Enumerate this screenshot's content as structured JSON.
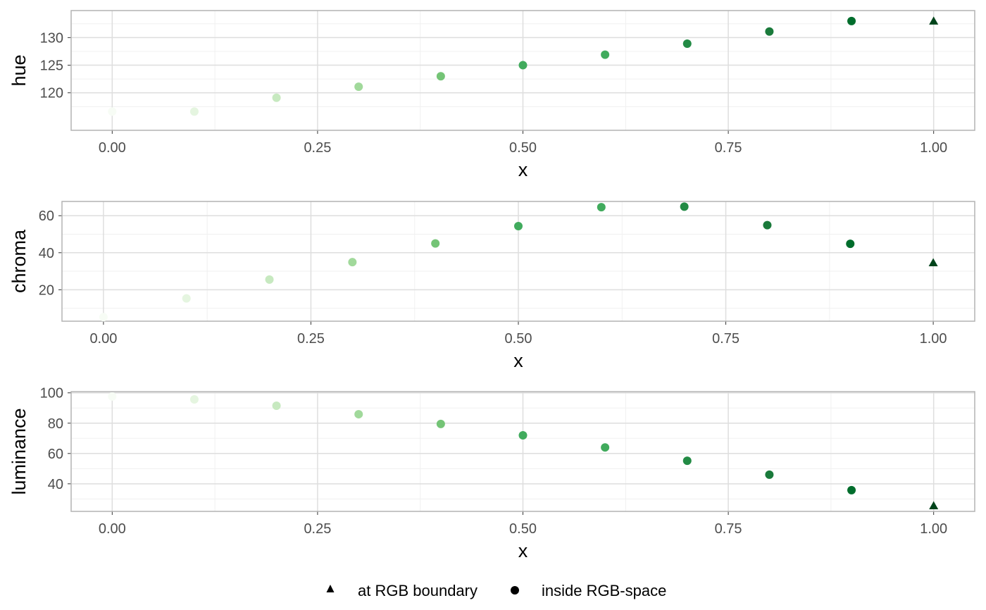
{
  "chart_data": [
    {
      "type": "scatter",
      "ylabel": "hue",
      "xlabel": "x",
      "xlim": [
        -0.05,
        1.05
      ],
      "ylim": [
        113.2,
        134.9
      ],
      "x_ticks": [
        0,
        0.25,
        0.5,
        0.75,
        1
      ],
      "x_tick_labels": [
        "0.00",
        "0.25",
        "0.50",
        "0.75",
        "1.00"
      ],
      "y_ticks": [
        120,
        125,
        130
      ],
      "y_tick_labels": [
        "120",
        "125",
        "130"
      ],
      "grid": true,
      "points": [
        {
          "x": 0.0,
          "y": 116.6,
          "shape": "circle"
        },
        {
          "x": 0.1,
          "y": 116.6,
          "shape": "circle"
        },
        {
          "x": 0.2,
          "y": 119.1,
          "shape": "circle"
        },
        {
          "x": 0.3,
          "y": 121.1,
          "shape": "circle"
        },
        {
          "x": 0.4,
          "y": 123.0,
          "shape": "circle"
        },
        {
          "x": 0.5,
          "y": 125.0,
          "shape": "circle"
        },
        {
          "x": 0.6,
          "y": 126.9,
          "shape": "circle"
        },
        {
          "x": 0.7,
          "y": 128.9,
          "shape": "circle"
        },
        {
          "x": 0.8,
          "y": 131.1,
          "shape": "circle"
        },
        {
          "x": 0.9,
          "y": 133.0,
          "shape": "circle"
        },
        {
          "x": 1.0,
          "y": 133.0,
          "shape": "triangle"
        }
      ]
    },
    {
      "type": "scatter",
      "ylabel": "chroma",
      "xlabel": "x",
      "xlim": [
        -0.05,
        1.05
      ],
      "ylim": [
        3.0,
        67.7
      ],
      "x_ticks": [
        0,
        0.25,
        0.5,
        0.75,
        1
      ],
      "x_tick_labels": [
        "0.00",
        "0.25",
        "0.50",
        "0.75",
        "1.00"
      ],
      "y_ticks": [
        20,
        40,
        60
      ],
      "y_tick_labels": [
        "20",
        "40",
        "60"
      ],
      "grid": true,
      "points": [
        {
          "x": 0.0,
          "y": 5.2,
          "shape": "circle"
        },
        {
          "x": 0.1,
          "y": 15.3,
          "shape": "circle"
        },
        {
          "x": 0.2,
          "y": 25.5,
          "shape": "circle"
        },
        {
          "x": 0.3,
          "y": 34.9,
          "shape": "circle"
        },
        {
          "x": 0.4,
          "y": 45.0,
          "shape": "circle"
        },
        {
          "x": 0.5,
          "y": 54.4,
          "shape": "circle"
        },
        {
          "x": 0.6,
          "y": 64.6,
          "shape": "circle"
        },
        {
          "x": 0.7,
          "y": 64.9,
          "shape": "circle"
        },
        {
          "x": 0.8,
          "y": 54.9,
          "shape": "circle"
        },
        {
          "x": 0.9,
          "y": 44.8,
          "shape": "circle"
        },
        {
          "x": 1.0,
          "y": 34.6,
          "shape": "triangle"
        }
      ]
    },
    {
      "type": "scatter",
      "ylabel": "luminance",
      "xlabel": "x",
      "xlim": [
        -0.05,
        1.05
      ],
      "ylim": [
        21.8,
        100.8
      ],
      "x_ticks": [
        0,
        0.25,
        0.5,
        0.75,
        1
      ],
      "x_tick_labels": [
        "0.00",
        "0.25",
        "0.50",
        "0.75",
        "1.00"
      ],
      "y_ticks": [
        40,
        60,
        80,
        100
      ],
      "y_tick_labels": [
        "40",
        "60",
        "80",
        "100"
      ],
      "grid": true,
      "points": [
        {
          "x": 0.0,
          "y": 97.6,
          "shape": "circle"
        },
        {
          "x": 0.1,
          "y": 95.7,
          "shape": "circle"
        },
        {
          "x": 0.2,
          "y": 91.5,
          "shape": "circle"
        },
        {
          "x": 0.3,
          "y": 85.9,
          "shape": "circle"
        },
        {
          "x": 0.4,
          "y": 79.5,
          "shape": "circle"
        },
        {
          "x": 0.5,
          "y": 72.0,
          "shape": "circle"
        },
        {
          "x": 0.6,
          "y": 64.0,
          "shape": "circle"
        },
        {
          "x": 0.7,
          "y": 55.2,
          "shape": "circle"
        },
        {
          "x": 0.8,
          "y": 46.0,
          "shape": "circle"
        },
        {
          "x": 0.9,
          "y": 35.8,
          "shape": "circle"
        },
        {
          "x": 1.0,
          "y": 25.5,
          "shape": "triangle"
        }
      ]
    }
  ],
  "point_colors": [
    "#f7fcf5",
    "#e5f5e0",
    "#c7e9c0",
    "#a1d99b",
    "#74c476",
    "#41ab5d",
    "#41ab5d",
    "#238b45",
    "#1a7a3b",
    "#006d2c",
    "#00441b"
  ],
  "legend": {
    "position": "bottom",
    "items": [
      {
        "label": "at RGB boundary",
        "shape": "triangle"
      },
      {
        "label": "inside RGB-space",
        "shape": "circle"
      }
    ]
  },
  "style": {
    "panel_border": "#b3b3b3",
    "grid_major": "#dedede",
    "grid_minor": "#f0f0f0"
  }
}
